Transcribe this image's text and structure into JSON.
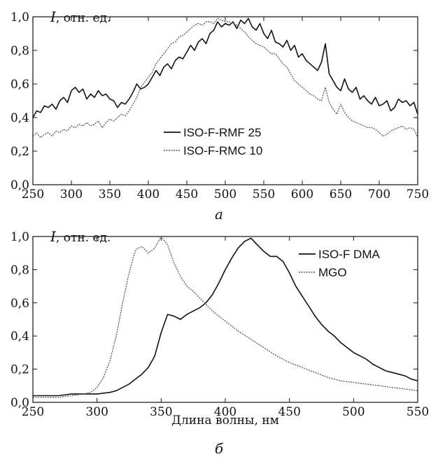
{
  "chart_data": [
    {
      "type": "line",
      "panel_label": "а",
      "ylabel_symbol": "I",
      "ylabel_units": ", отн. ед.",
      "xlabel": "",
      "xlim": [
        250,
        750
      ],
      "ylim": [
        0,
        1.0
      ],
      "x_ticks": [
        250,
        300,
        350,
        400,
        450,
        500,
        550,
        600,
        650,
        700,
        750
      ],
      "y_tick_labels": [
        "0,0",
        "0,2",
        "0,4",
        "0,6",
        "0,8",
        "1,0"
      ],
      "legend_position": "bottom-center",
      "series": [
        {
          "name": "ISO-F-RMF 25",
          "style": "solid",
          "color": "#111111",
          "x": [
            250,
            255,
            260,
            265,
            270,
            275,
            280,
            285,
            290,
            295,
            300,
            305,
            310,
            315,
            320,
            325,
            330,
            335,
            340,
            345,
            350,
            355,
            360,
            365,
            370,
            375,
            380,
            385,
            390,
            395,
            400,
            405,
            410,
            415,
            420,
            425,
            430,
            435,
            440,
            445,
            450,
            455,
            460,
            465,
            470,
            475,
            480,
            485,
            490,
            495,
            500,
            505,
            510,
            515,
            520,
            525,
            530,
            535,
            540,
            545,
            550,
            555,
            560,
            565,
            570,
            575,
            580,
            585,
            590,
            595,
            600,
            605,
            610,
            615,
            620,
            625,
            630,
            635,
            640,
            645,
            650,
            655,
            660,
            665,
            670,
            675,
            680,
            685,
            690,
            695,
            700,
            705,
            710,
            715,
            720,
            725,
            730,
            735,
            740,
            745,
            750
          ],
          "y": [
            0.4,
            0.44,
            0.43,
            0.47,
            0.46,
            0.48,
            0.45,
            0.5,
            0.52,
            0.49,
            0.56,
            0.58,
            0.55,
            0.57,
            0.51,
            0.54,
            0.52,
            0.56,
            0.53,
            0.54,
            0.51,
            0.5,
            0.46,
            0.49,
            0.48,
            0.51,
            0.55,
            0.6,
            0.57,
            0.58,
            0.6,
            0.64,
            0.68,
            0.65,
            0.7,
            0.72,
            0.69,
            0.74,
            0.76,
            0.75,
            0.79,
            0.83,
            0.8,
            0.85,
            0.87,
            0.84,
            0.9,
            0.92,
            0.97,
            0.94,
            0.96,
            0.95,
            0.97,
            0.93,
            0.98,
            0.96,
            0.99,
            0.94,
            0.92,
            0.96,
            0.9,
            0.87,
            0.92,
            0.85,
            0.84,
            0.82,
            0.86,
            0.8,
            0.83,
            0.76,
            0.78,
            0.74,
            0.72,
            0.7,
            0.68,
            0.73,
            0.84,
            0.66,
            0.62,
            0.58,
            0.56,
            0.63,
            0.57,
            0.55,
            0.58,
            0.51,
            0.53,
            0.5,
            0.48,
            0.52,
            0.47,
            0.48,
            0.5,
            0.44,
            0.46,
            0.51,
            0.49,
            0.5,
            0.47,
            0.49,
            0.42
          ]
        },
        {
          "name": "ISO-F-RMC 10",
          "style": "dotted",
          "color": "#555555",
          "x": [
            250,
            255,
            260,
            265,
            270,
            275,
            280,
            285,
            290,
            295,
            300,
            305,
            310,
            315,
            320,
            325,
            330,
            335,
            340,
            345,
            350,
            355,
            360,
            365,
            370,
            375,
            380,
            385,
            390,
            395,
            400,
            405,
            410,
            415,
            420,
            425,
            430,
            435,
            440,
            445,
            450,
            455,
            460,
            465,
            470,
            475,
            480,
            485,
            490,
            495,
            500,
            505,
            510,
            515,
            520,
            525,
            530,
            535,
            540,
            545,
            550,
            555,
            560,
            565,
            570,
            575,
            580,
            585,
            590,
            595,
            600,
            605,
            610,
            615,
            620,
            625,
            630,
            635,
            640,
            645,
            650,
            655,
            660,
            665,
            670,
            675,
            680,
            685,
            690,
            695,
            700,
            705,
            710,
            715,
            720,
            725,
            730,
            735,
            740,
            745,
            750
          ],
          "y": [
            0.29,
            0.31,
            0.28,
            0.3,
            0.31,
            0.29,
            0.32,
            0.31,
            0.33,
            0.32,
            0.35,
            0.34,
            0.36,
            0.35,
            0.37,
            0.35,
            0.36,
            0.38,
            0.34,
            0.37,
            0.39,
            0.38,
            0.4,
            0.42,
            0.41,
            0.44,
            0.48,
            0.52,
            0.58,
            0.61,
            0.64,
            0.67,
            0.72,
            0.75,
            0.78,
            0.81,
            0.84,
            0.85,
            0.88,
            0.89,
            0.91,
            0.93,
            0.95,
            0.96,
            0.95,
            0.97,
            0.97,
            0.96,
            0.99,
            0.98,
            0.97,
            0.97,
            0.96,
            0.95,
            0.93,
            0.91,
            0.88,
            0.86,
            0.84,
            0.83,
            0.82,
            0.8,
            0.78,
            0.78,
            0.75,
            0.72,
            0.7,
            0.66,
            0.62,
            0.6,
            0.58,
            0.56,
            0.54,
            0.53,
            0.51,
            0.5,
            0.58,
            0.49,
            0.45,
            0.42,
            0.48,
            0.43,
            0.4,
            0.38,
            0.37,
            0.36,
            0.35,
            0.34,
            0.34,
            0.33,
            0.31,
            0.29,
            0.3,
            0.32,
            0.33,
            0.34,
            0.35,
            0.33,
            0.34,
            0.33,
            0.28
          ]
        }
      ]
    },
    {
      "type": "line",
      "panel_label": "б",
      "ylabel_symbol": "I",
      "ylabel_units": ", отн. ед.",
      "xlabel": "Длина волны, нм",
      "xlim": [
        250,
        550
      ],
      "ylim": [
        0,
        1.0
      ],
      "x_ticks": [
        250,
        300,
        350,
        400,
        450,
        500,
        550
      ],
      "y_tick_labels": [
        "0,0",
        "0,2",
        "0,4",
        "0,6",
        "0,8",
        "1,0"
      ],
      "legend_position": "top-right",
      "series": [
        {
          "name": "ISO-F DMA",
          "style": "solid",
          "color": "#111111",
          "x": [
            250,
            260,
            270,
            280,
            290,
            300,
            310,
            315,
            320,
            325,
            330,
            335,
            340,
            345,
            350,
            355,
            360,
            365,
            370,
            375,
            380,
            385,
            390,
            395,
            400,
            405,
            410,
            415,
            420,
            425,
            430,
            435,
            440,
            445,
            450,
            455,
            460,
            465,
            470,
            475,
            480,
            485,
            490,
            495,
            500,
            505,
            510,
            515,
            520,
            525,
            530,
            535,
            540,
            545,
            550
          ],
          "y": [
            0.04,
            0.04,
            0.04,
            0.05,
            0.05,
            0.05,
            0.06,
            0.07,
            0.09,
            0.11,
            0.14,
            0.17,
            0.21,
            0.28,
            0.42,
            0.53,
            0.52,
            0.5,
            0.53,
            0.55,
            0.57,
            0.6,
            0.65,
            0.72,
            0.8,
            0.87,
            0.93,
            0.97,
            0.99,
            0.95,
            0.91,
            0.88,
            0.88,
            0.85,
            0.78,
            0.7,
            0.64,
            0.58,
            0.52,
            0.47,
            0.43,
            0.4,
            0.36,
            0.33,
            0.3,
            0.28,
            0.26,
            0.23,
            0.21,
            0.19,
            0.18,
            0.17,
            0.16,
            0.14,
            0.13
          ]
        },
        {
          "name": "MGO",
          "style": "dotted",
          "color": "#555555",
          "x": [
            250,
            260,
            270,
            280,
            290,
            295,
            300,
            305,
            310,
            315,
            320,
            325,
            330,
            335,
            340,
            345,
            350,
            355,
            360,
            365,
            370,
            375,
            380,
            385,
            390,
            395,
            400,
            410,
            420,
            430,
            440,
            450,
            460,
            470,
            480,
            490,
            500,
            510,
            520,
            530,
            540,
            550
          ],
          "y": [
            0.03,
            0.03,
            0.03,
            0.04,
            0.05,
            0.06,
            0.09,
            0.15,
            0.25,
            0.4,
            0.6,
            0.78,
            0.92,
            0.94,
            0.9,
            0.93,
            1.0,
            0.95,
            0.84,
            0.76,
            0.7,
            0.67,
            0.63,
            0.59,
            0.55,
            0.52,
            0.49,
            0.43,
            0.38,
            0.33,
            0.28,
            0.24,
            0.21,
            0.18,
            0.15,
            0.13,
            0.12,
            0.11,
            0.1,
            0.09,
            0.08,
            0.07
          ]
        }
      ]
    }
  ]
}
